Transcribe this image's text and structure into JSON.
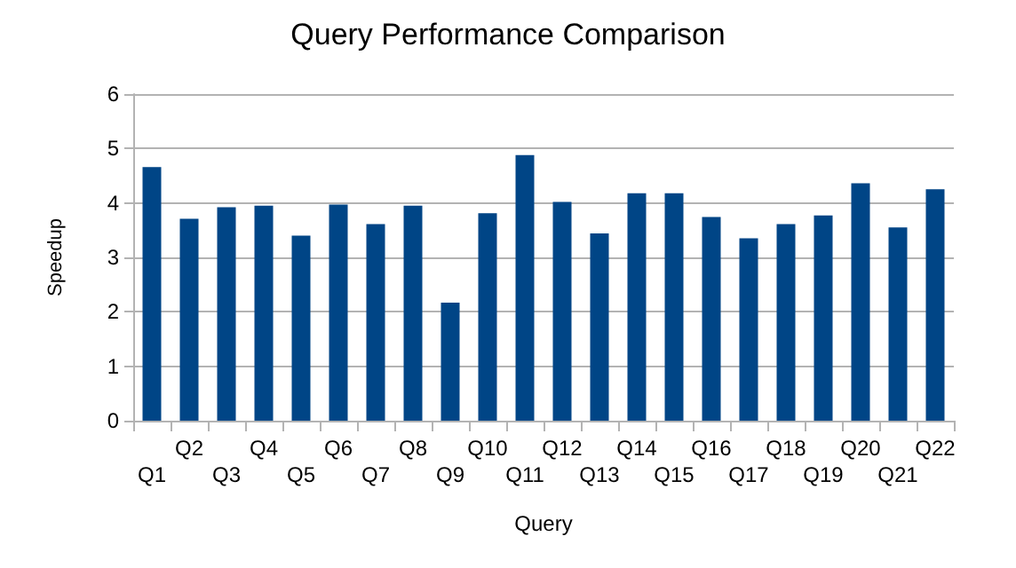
{
  "chart_data": {
    "type": "bar",
    "title": "Query Performance Comparison",
    "xlabel": "Query",
    "ylabel": "Speedup",
    "categories": [
      "Q1",
      "Q2",
      "Q3",
      "Q4",
      "Q5",
      "Q6",
      "Q7",
      "Q8",
      "Q9",
      "Q10",
      "Q11",
      "Q12",
      "Q13",
      "Q14",
      "Q15",
      "Q16",
      "Q17",
      "Q18",
      "Q19",
      "Q20",
      "Q21",
      "Q22"
    ],
    "values": [
      4.66,
      3.71,
      3.92,
      3.95,
      3.4,
      3.97,
      3.61,
      3.95,
      2.17,
      3.81,
      4.88,
      4.02,
      3.44,
      4.18,
      4.18,
      3.74,
      3.35,
      3.61,
      3.77,
      4.36,
      3.55,
      4.25
    ],
    "color": "#004586",
    "ylim": [
      0,
      6
    ],
    "yticks": [
      0,
      1,
      2,
      3,
      4,
      5,
      6
    ],
    "grid": "y"
  }
}
